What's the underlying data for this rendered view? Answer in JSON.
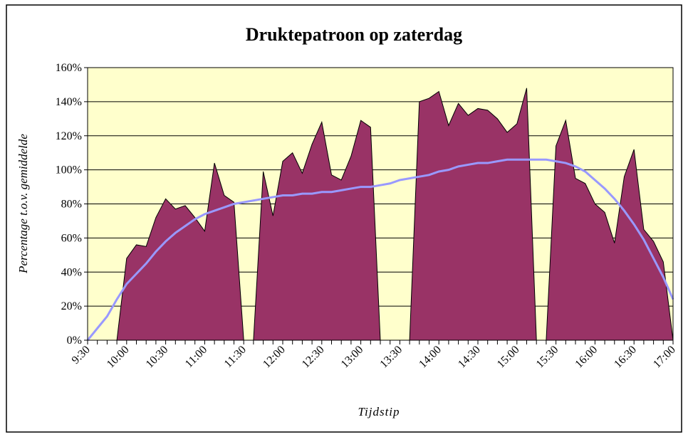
{
  "chart_data": {
    "type": "area",
    "title": "Druktepatroon op zaterdag",
    "x_label": "Tijdstip",
    "y_label": "Percentage t.o.v. gemiddelde",
    "categories": [
      "9:30",
      null,
      null,
      null,
      "10:00",
      null,
      null,
      null,
      "10:30",
      null,
      null,
      null,
      "11:00",
      null,
      null,
      null,
      "11:30",
      null,
      null,
      null,
      "12:00",
      null,
      null,
      null,
      "12:30",
      null,
      null,
      null,
      "13:00",
      null,
      null,
      null,
      "13:30",
      null,
      null,
      null,
      "14:00",
      null,
      null,
      null,
      "14:30",
      null,
      null,
      null,
      "15:00",
      null,
      null,
      null,
      "15:30",
      null,
      null,
      null,
      "16:00",
      null,
      null,
      null,
      "16:30",
      null,
      null,
      null,
      "17:00"
    ],
    "series": [
      {
        "color": "#993366",
        "values": [
          0,
          0,
          0,
          0,
          48,
          56,
          55,
          72,
          83,
          77,
          79,
          72,
          64,
          104,
          85,
          81,
          0,
          0,
          99,
          73,
          105,
          110,
          98,
          115,
          128,
          97,
          94,
          108,
          129,
          125,
          0,
          0,
          0,
          0,
          140,
          142,
          146,
          126,
          139,
          132,
          136,
          135,
          130,
          122,
          127,
          148,
          0,
          0,
          114,
          129,
          95,
          92,
          80,
          75,
          57,
          96,
          112,
          65,
          58,
          46,
          0
        ]
      },
      {
        "color": "#9999ff",
        "values": [
          0,
          7,
          14,
          24,
          33,
          39,
          45,
          52,
          58,
          63,
          67,
          71,
          74,
          76,
          78,
          80,
          81,
          82,
          83,
          84,
          85,
          85,
          86,
          86,
          87,
          87,
          88,
          89,
          90,
          90,
          91,
          92,
          94,
          95,
          96,
          97,
          99,
          100,
          102,
          103,
          104,
          104,
          105,
          106,
          106,
          106,
          106,
          106,
          105,
          104,
          102,
          99,
          94,
          89,
          83,
          76,
          68,
          59,
          48,
          37,
          24
        ]
      }
    ],
    "ylim": [
      0,
      160
    ],
    "yticks": [
      {
        "value": 0,
        "label": "0%"
      },
      {
        "value": 20,
        "label": "20%"
      },
      {
        "value": 40,
        "label": "40%"
      },
      {
        "value": 60,
        "label": "60%"
      },
      {
        "value": 80,
        "label": "80%"
      },
      {
        "value": 100,
        "label": "100%"
      },
      {
        "value": 120,
        "label": "120%"
      },
      {
        "value": 140,
        "label": "140%"
      },
      {
        "value": 160,
        "label": "160%"
      }
    ],
    "grid": true,
    "plot_background": "#ffffcc"
  }
}
